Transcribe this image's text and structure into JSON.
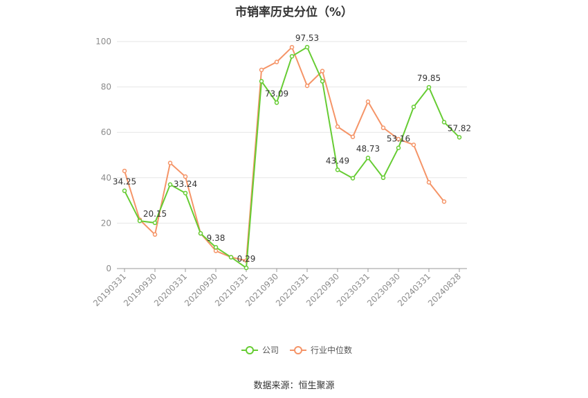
{
  "chart_data": {
    "type": "line",
    "title": "市销率历史分位（%）",
    "xlabel": "",
    "ylabel": "",
    "ylim": [
      0,
      100
    ],
    "yticks": [
      "0",
      "20",
      "40",
      "60",
      "80",
      "100"
    ],
    "grid": true,
    "legend_position": "bottom",
    "x": [
      "20190331",
      "20190630",
      "20190930",
      "20191231",
      "20200331",
      "20200630",
      "20200930",
      "20201231",
      "20210331",
      "20210630",
      "20210930",
      "20211231",
      "20220331",
      "20220630",
      "20220930",
      "20221231",
      "20230331",
      "20230630",
      "20230930",
      "20231231",
      "20240331",
      "20240630",
      "20240828"
    ],
    "xtick_labels": [
      "20190331",
      "20190930",
      "20200331",
      "20200930",
      "20210331",
      "20210930",
      "20220331",
      "20220930",
      "20230331",
      "20230930",
      "20240331",
      "20240828"
    ],
    "series": [
      {
        "name": "公司",
        "color": "#66cc33",
        "values": [
          34.25,
          21.0,
          20.15,
          37.0,
          33.24,
          15.5,
          9.38,
          5.0,
          0.29,
          82.5,
          73.09,
          93.5,
          97.53,
          82.5,
          43.49,
          39.8,
          48.73,
          40.0,
          53.16,
          71.2,
          79.85,
          64.5,
          57.82
        ],
        "labels": [
          "34.25",
          "",
          "20.15",
          "",
          "33.24",
          "",
          "9.38",
          "",
          "0.29",
          "",
          "73.09",
          "",
          "97.53",
          "",
          "43.49",
          "",
          "48.73",
          "",
          "53.16",
          "",
          "79.85",
          "",
          "57.82"
        ]
      },
      {
        "name": "行业中位数",
        "color": "#f59467",
        "values": [
          43.0,
          21.5,
          15.0,
          46.5,
          40.5,
          15.5,
          7.8,
          5.0,
          3.5,
          87.5,
          91.0,
          97.5,
          80.5,
          87.0,
          62.5,
          58.0,
          73.5,
          62.0,
          57.0,
          54.5,
          38.0,
          29.5,
          null
        ]
      }
    ]
  },
  "legend": [
    {
      "label": "公司",
      "color": "#66cc33"
    },
    {
      "label": "行业中位数",
      "color": "#f59467"
    }
  ],
  "source": "数据来源：恒生聚源"
}
